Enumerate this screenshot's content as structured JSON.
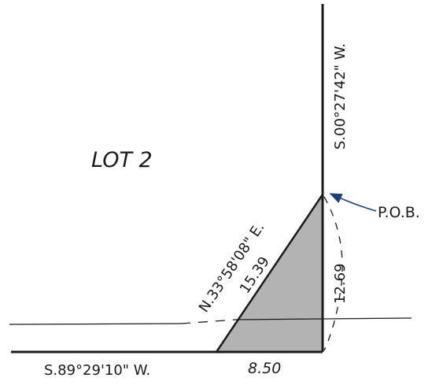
{
  "lot_label": "LOT 2",
  "pob_label": "P.O.B.",
  "courses": {
    "east_line": "S.00°27'42\" W.",
    "diagonal_bearing": "N.33°58'08\" E.",
    "diagonal_distance": "15.39",
    "east_segment_distance": "12.69",
    "south_line": "S.89°29'10\" W.",
    "south_segment_distance": "8.50"
  },
  "colors": {
    "line": "#1a1a1a",
    "parcel_fill": "#b3b3b3",
    "pob_arrow": "#1f3f7a"
  }
}
